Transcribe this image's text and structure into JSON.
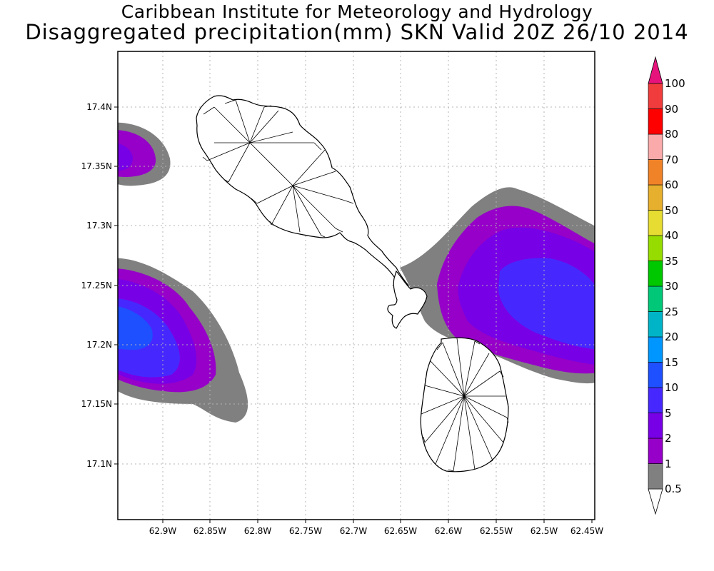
{
  "titles": {
    "line1": "Caribbean Institute for Meteorology and Hydrology",
    "line2": "Disaggregated precipitation(mm) SKN Valid 20Z 26/10 2014"
  },
  "axes": {
    "lon_ticks": [
      "62.9W",
      "62.85W",
      "62.8W",
      "62.75W",
      "62.7W",
      "62.65W",
      "62.6W",
      "62.55W",
      "62.5W",
      "62.45W"
    ],
    "lat_ticks": [
      "17.4N",
      "17.35N",
      "17.3N",
      "17.25N",
      "17.2N",
      "17.15N",
      "17.1N"
    ],
    "lon_range": [
      -62.938,
      -62.447
    ],
    "lat_range": [
      17.047,
      17.445
    ],
    "grid": "dotted"
  },
  "colorbar": {
    "levels": [
      "0.5",
      "1",
      "2",
      "5",
      "10",
      "15",
      "20",
      "25",
      "30",
      "35",
      "40",
      "50",
      "60",
      "70",
      "80",
      "90",
      "100"
    ],
    "colors": [
      "#808080",
      "#9600c8",
      "#7800e6",
      "#4628ff",
      "#1e50ff",
      "#0096ff",
      "#00b4c8",
      "#00c878",
      "#00c800",
      "#96dc00",
      "#e6dc32",
      "#e6af2d",
      "#f08228",
      "#faaaaa",
      "#ff0000",
      "#f03c3c"
    ],
    "top_arrow_color": "#e6137d",
    "bottom_arrow_color": "#ffffff"
  },
  "map": {
    "islands": [
      "St. Kitts",
      "Nevis"
    ],
    "precip_regions": [
      {
        "name": "northwest",
        "max_level": "2"
      },
      {
        "name": "southwest",
        "max_level": "10"
      },
      {
        "name": "east",
        "max_level": "10"
      }
    ]
  }
}
